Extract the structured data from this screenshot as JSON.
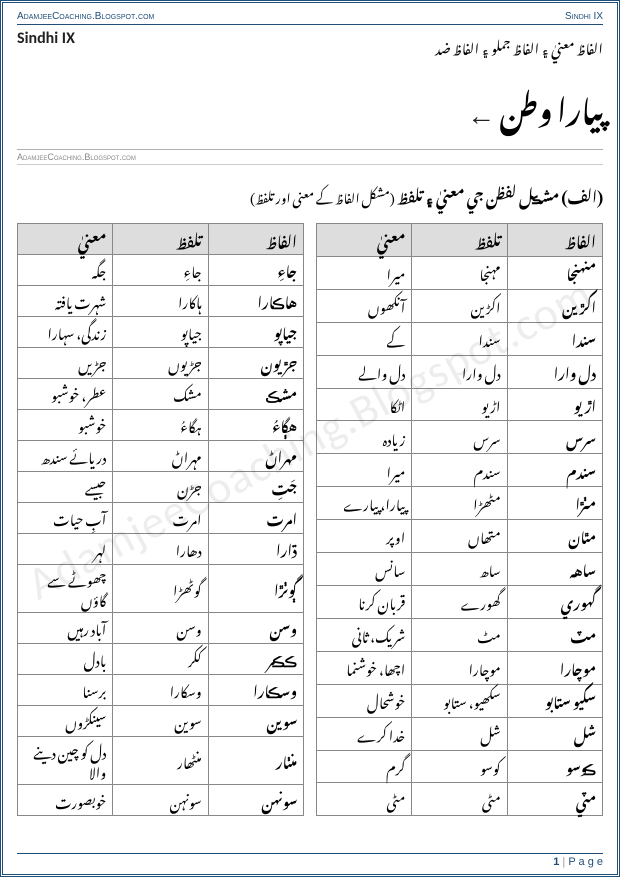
{
  "site_url": "AdamjeeCoaching.Blogspot.com",
  "subject_tag": "Sindhi IX",
  "subject_label": "Sindhi IX",
  "urdu_subheader": "الفاظ معنيٰ ۽ الفاظ جملو ۽ الفاظ ضد",
  "chapter_title": "پيارا وطن",
  "arrow": "←",
  "section_heading_main": "(الف) مشڪل لفظن جي معنيٰ ۽ تلفظ",
  "section_heading_paren": "(مشکل الفاظ کے معنی اور تلفظ)",
  "columns": {
    "word": "الفاظ",
    "pron": "تلفظ",
    "meaning": "معنيٰ"
  },
  "table_right": [
    {
      "word": "منهنجا",
      "pron": "مہنجا",
      "meaning": "میرا"
    },
    {
      "word": "اکڙين",
      "pron": "اکڑین",
      "meaning": "آنکھوں"
    },
    {
      "word": "سندا",
      "pron": "سندا",
      "meaning": "کے"
    },
    {
      "word": "دل وارا",
      "pron": "دل وارا",
      "meaning": "دل والے"
    },
    {
      "word": "اڙيو",
      "pron": "اڑیو",
      "meaning": "اٹکا"
    },
    {
      "word": "سرس",
      "pron": "سرس",
      "meaning": "زیادہ"
    },
    {
      "word": "سندم",
      "pron": "سندم",
      "meaning": "میرا"
    },
    {
      "word": "مٺڙا",
      "pron": "مٹھڑا",
      "meaning": "پیارا، پیارے"
    },
    {
      "word": "مٿان",
      "pron": "متھاں",
      "meaning": "اوپر"
    },
    {
      "word": "ساهه",
      "pron": "ساھ",
      "meaning": "سانس"
    },
    {
      "word": "گهوري",
      "pron": "گھورے",
      "meaning": "قربان کرنا"
    },
    {
      "word": "مٽ",
      "pron": "مٹ",
      "meaning": "شریک، ثانی"
    },
    {
      "word": "موچارا",
      "pron": "موچارا",
      "meaning": "اچھا، خوشنما"
    },
    {
      "word": "سکيو ستابو",
      "pron": "سکھیو، ستابو",
      "meaning": "خوشحال"
    },
    {
      "word": "شل",
      "pron": "شل",
      "meaning": "خدا کرے"
    },
    {
      "word": "ڪوسو",
      "pron": "کوسو",
      "meaning": "گرم"
    },
    {
      "word": "مٽي",
      "pron": "مٹی",
      "meaning": "مٹی"
    }
  ],
  "table_left": [
    {
      "word": "جاءِ",
      "pron": "جاءِ",
      "meaning": "جگہ"
    },
    {
      "word": "هاڪارا",
      "pron": "ہاکارا",
      "meaning": "شہرت یافتہ"
    },
    {
      "word": "جياپو",
      "pron": "جیاپو",
      "meaning": "زندگی، سہارا"
    },
    {
      "word": "جڙيون",
      "pron": "جڑیوں",
      "meaning": "جڑیں"
    },
    {
      "word": "مشڪ",
      "pron": "مشک",
      "meaning": "عطر، خوشبو"
    },
    {
      "word": "هڳاءُ",
      "pron": "ہگاءُ",
      "meaning": "خوشبو"
    },
    {
      "word": "مهراڻ",
      "pron": "مہراڻ",
      "meaning": "دریائے سندھ"
    },
    {
      "word": "جَتِ",
      "pron": "جڑن",
      "meaning": "جیسے"
    },
    {
      "word": "امرت",
      "pron": "امرت",
      "meaning": "آبِ حیات"
    },
    {
      "word": "ڌارا",
      "pron": "دھارا",
      "meaning": "لہر"
    },
    {
      "word": "ڳوٺڙا",
      "pron": "گوٹھڑا",
      "meaning": "چھوٹے سے گاؤں"
    },
    {
      "word": "وسن",
      "pron": "وسن",
      "meaning": "آباد رہیں"
    },
    {
      "word": "ڪڪر",
      "pron": "ککر",
      "meaning": "بادل"
    },
    {
      "word": "وسڪارا",
      "pron": "وسکارا",
      "meaning": "برسنا"
    },
    {
      "word": "سوين",
      "pron": "سوین",
      "meaning": "سینکڑوں"
    },
    {
      "word": "منٺار",
      "pron": "منٹھار",
      "meaning": "دل کو چین دینے والا"
    },
    {
      "word": "سونهن",
      "pron": "سونہن",
      "meaning": "خوبصورت"
    }
  ],
  "footer": {
    "page_num": "1",
    "page_label": "P a g e"
  },
  "watermark": "AdamjeeCoaching.Blogspot.com"
}
